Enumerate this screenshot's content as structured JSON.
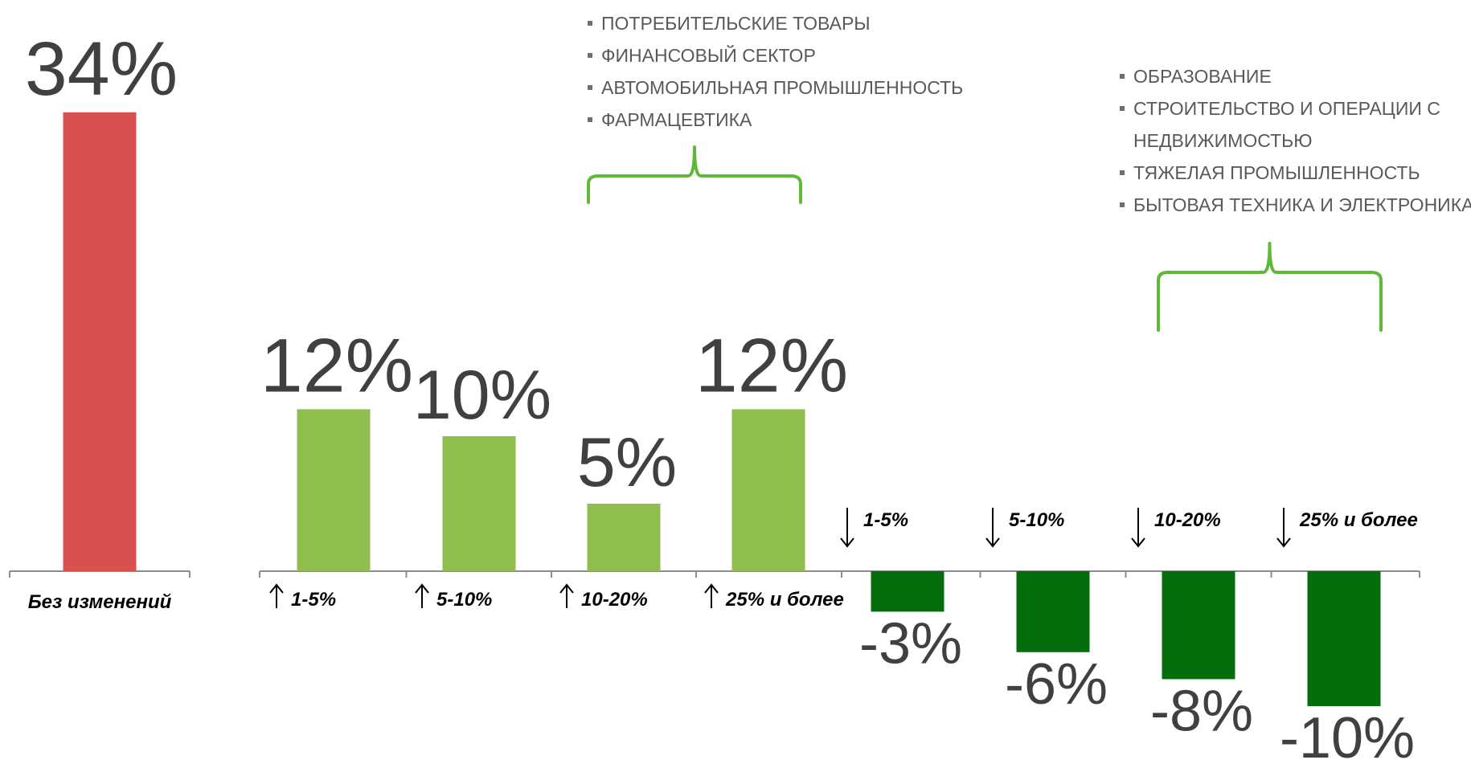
{
  "chart_data": {
    "type": "bar",
    "unit": "%",
    "series": [
      {
        "categories": [
          "Без изменений"
        ],
        "values": [
          34
        ],
        "labels": [
          "34%"
        ],
        "color": "#d9504f"
      },
      {
        "categories": [
          "1-5%",
          "5-10%",
          "10-20%",
          "25% и более"
        ],
        "values": [
          12,
          10,
          5,
          12
        ],
        "labels": [
          "12%",
          "10%",
          "5%",
          "12%"
        ],
        "direction": "up",
        "color": "#8fbe4f"
      },
      {
        "categories": [
          "1-5%",
          "5-10%",
          "10-20%",
          "25% и более"
        ],
        "values": [
          -3,
          -6,
          -8,
          -10
        ],
        "labels": [
          "-3%",
          "-6%",
          "-8%",
          "-10%"
        ],
        "direction": "down",
        "color": "#056e0c"
      }
    ],
    "annotations": [
      {
        "items": [
          "ПОТРЕБИТЕЛЬСКИЕ ТОВАРЫ",
          "ФИНАНСОВЫЙ СЕКТОР",
          "АВТОМОБИЛЬНАЯ ПРОМЫШЛЕННОСТЬ",
          "ФАРМАЦЕВТИКА"
        ],
        "brace_color": "#5fb83a"
      },
      {
        "items": [
          "ОБРАЗОВАНИЕ",
          "СТРОИТЕЛЬСТВО И ОПЕРАЦИИ С",
          "НЕДВИЖИМОСТЬЮ",
          "ТЯЖЕЛАЯ ПРОМЫШЛЕННОСТЬ",
          "БЫТОВАЯ ТЕХНИКА И ЭЛЕКТРОНИКА"
        ],
        "bullets": [
          true,
          true,
          false,
          true,
          true
        ],
        "brace_color": "#5fb83a"
      }
    ],
    "axis_color": "#8c8c8c",
    "value_label_color": "#404040"
  }
}
